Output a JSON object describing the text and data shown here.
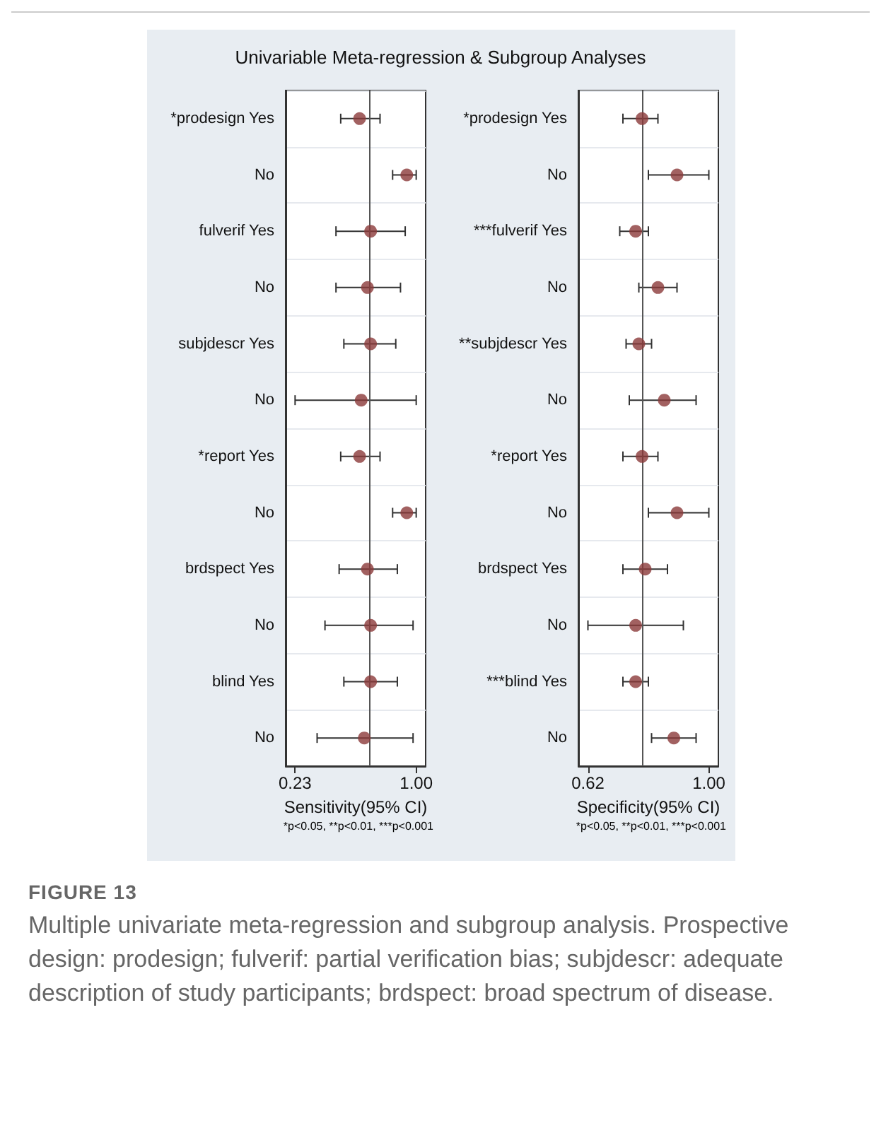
{
  "chart_data": [
    {
      "type": "scatter",
      "title": "Univariable Meta-regression & Subgroup Analyses",
      "orientation": "horizontal",
      "xlabel": "Sensitivity(95% CI)",
      "categories": [
        "*prodesign Yes",
        "No",
        "fulverif Yes",
        "No",
        "subjdescr Yes",
        "No",
        "*report Yes",
        "No",
        "brdspect Yes",
        "No",
        "blind Yes",
        "No"
      ],
      "values": [
        0.64,
        0.94,
        0.71,
        0.69,
        0.71,
        0.65,
        0.64,
        0.94,
        0.69,
        0.71,
        0.71,
        0.67
      ],
      "errors": [
        [
          0.52,
          0.77
        ],
        [
          0.85,
          1.0
        ],
        [
          0.49,
          0.93
        ],
        [
          0.49,
          0.9
        ],
        [
          0.54,
          0.87
        ],
        [
          0.23,
          1.0
        ],
        [
          0.52,
          0.77
        ],
        [
          0.85,
          1.0
        ],
        [
          0.51,
          0.88
        ],
        [
          0.42,
          0.98
        ],
        [
          0.54,
          0.88
        ],
        [
          0.37,
          0.98
        ]
      ],
      "color": "#8b3a3a",
      "marker": "circle",
      "grid": "y",
      "xlim": [
        0.17,
        1.06
      ],
      "xticks": [
        0.23,
        {
          "value": 1.0,
          "label": "1.00"
        }
      ],
      "ref_lines": [
        {
          "axis": "x",
          "value": 0.7,
          "color": "#555555"
        }
      ],
      "annotations": [
        "*p<0.05, **p<0.01, ***p<0.001"
      ]
    },
    {
      "type": "scatter",
      "orientation": "horizontal",
      "xlabel": "Specificity(95% CI)",
      "categories": [
        "*prodesign Yes",
        "No",
        "***fulverif Yes",
        "No",
        "**subjdescr Yes",
        "No",
        "*report Yes",
        "No",
        "brdspect Yes",
        "No",
        "***blind Yes",
        "No"
      ],
      "values": [
        0.79,
        0.9,
        0.77,
        0.84,
        0.78,
        0.86,
        0.79,
        0.9,
        0.8,
        0.77,
        0.77,
        0.89
      ],
      "errors": [
        [
          0.73,
          0.84
        ],
        [
          0.81,
          1.0
        ],
        [
          0.72,
          0.81
        ],
        [
          0.78,
          0.9
        ],
        [
          0.74,
          0.82
        ],
        [
          0.75,
          0.96
        ],
        [
          0.73,
          0.84
        ],
        [
          0.81,
          1.0
        ],
        [
          0.73,
          0.87
        ],
        [
          0.62,
          0.92
        ],
        [
          0.73,
          0.81
        ],
        [
          0.82,
          0.96
        ]
      ],
      "color": "#8b3a3a",
      "marker": "circle",
      "grid": "y",
      "xlim": [
        0.59,
        1.03
      ],
      "xticks": [
        0.62,
        {
          "value": 1.0,
          "label": "1.00"
        }
      ],
      "ref_lines": [
        {
          "axis": "x",
          "value": 0.79,
          "color": "#555555"
        }
      ],
      "annotations": [
        "*p<0.05, **p<0.01, ***p<0.001",
        "FIGURE 13",
        "Multiple univariate meta-regression and subgroup analysis. Prospective design: prodesign; fulverif: partial verification bias; subjdescr: adequate description of study participants; brdspect: broad spectrum of disease."
      ]
    }
  ]
}
